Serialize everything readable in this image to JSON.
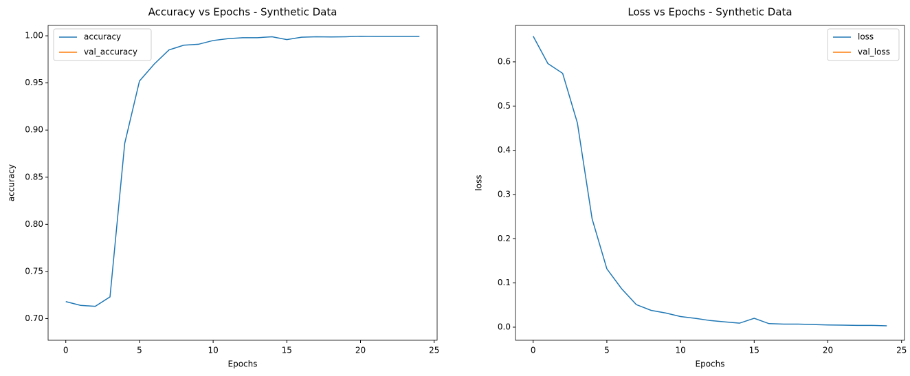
{
  "chart_data": [
    {
      "type": "line",
      "title": "Accuracy vs Epochs - Synthetic Data",
      "xlabel": "Epochs",
      "ylabel": "accuracy",
      "x": [
        0,
        1,
        2,
        3,
        4,
        5,
        6,
        7,
        8,
        9,
        10,
        11,
        12,
        13,
        14,
        15,
        16,
        17,
        18,
        19,
        20,
        21,
        22,
        23,
        24
      ],
      "series": [
        {
          "name": "accuracy",
          "color": "#1f77b4",
          "values": [
            0.718,
            0.714,
            0.713,
            0.723,
            0.886,
            0.952,
            0.97,
            0.985,
            0.99,
            0.991,
            0.995,
            0.997,
            0.998,
            0.998,
            0.999,
            0.996,
            0.9985,
            0.999,
            0.9988,
            0.999,
            0.9995,
            0.9993,
            0.9993,
            0.9993,
            0.9993
          ]
        },
        {
          "name": "val_accuracy",
          "color": "#ff7f0e",
          "values": [
            null,
            null,
            null,
            null,
            null,
            null,
            null,
            null,
            null,
            null,
            null,
            null,
            null,
            null,
            null,
            null,
            null,
            null,
            null,
            null,
            null,
            null,
            null,
            null,
            null
          ]
        }
      ],
      "xlim": [
        -1.2,
        25.2
      ],
      "xticks": [
        0,
        5,
        10,
        15,
        20,
        25
      ],
      "ylim": [
        0.677,
        1.011
      ],
      "yticks": [
        {
          "value": 0.7,
          "label": "0.70"
        },
        {
          "value": 0.75,
          "label": "0.75"
        },
        {
          "value": 0.8,
          "label": "0.80"
        },
        {
          "value": 0.85,
          "label": "0.85"
        },
        {
          "value": 0.9,
          "label": "0.90"
        },
        {
          "value": 0.95,
          "label": "0.95"
        },
        {
          "value": 1,
          "label": "1.00"
        }
      ],
      "legend": "upper left"
    },
    {
      "type": "line",
      "title": "Loss vs Epochs - Synthetic Data",
      "xlabel": "Epochs",
      "ylabel": "loss",
      "x": [
        0,
        1,
        2,
        3,
        4,
        5,
        6,
        7,
        8,
        9,
        10,
        11,
        12,
        13,
        14,
        15,
        16,
        17,
        18,
        19,
        20,
        21,
        22,
        23,
        24
      ],
      "series": [
        {
          "name": "loss",
          "color": "#1f77b4",
          "values": [
            0.658,
            0.596,
            0.574,
            0.462,
            0.245,
            0.132,
            0.087,
            0.051,
            0.038,
            0.032,
            0.024,
            0.02,
            0.015,
            0.012,
            0.009,
            0.02,
            0.008,
            0.007,
            0.007,
            0.006,
            0.005,
            0.0045,
            0.004,
            0.004,
            0.003
          ]
        },
        {
          "name": "val_loss",
          "color": "#ff7f0e",
          "values": [
            null,
            null,
            null,
            null,
            null,
            null,
            null,
            null,
            null,
            null,
            null,
            null,
            null,
            null,
            null,
            null,
            null,
            null,
            null,
            null,
            null,
            null,
            null,
            null,
            null
          ]
        }
      ],
      "xlim": [
        -1.2,
        25.2
      ],
      "xticks": [
        0,
        5,
        10,
        15,
        20,
        25
      ],
      "ylim": [
        -0.0296,
        0.6823
      ],
      "yticks": [
        {
          "value": 0,
          "label": "0.0"
        },
        0.1,
        0.2,
        0.3,
        0.4,
        0.5,
        0.6
      ],
      "legend": "upper right"
    }
  ]
}
